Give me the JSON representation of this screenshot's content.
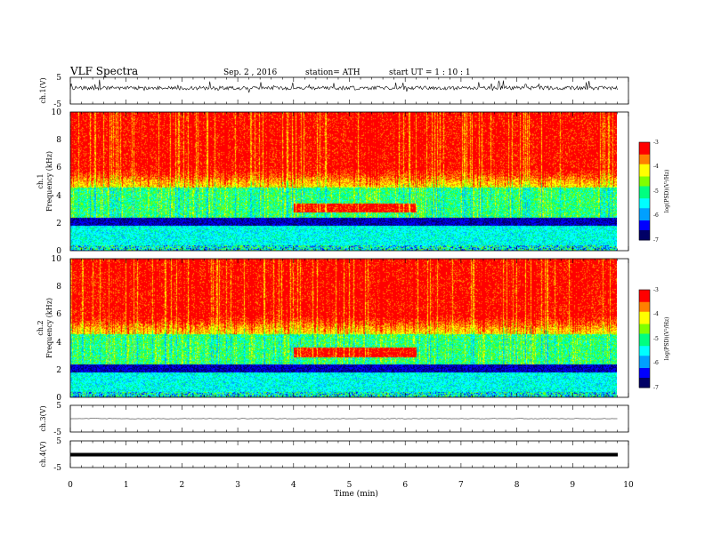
{
  "header": {
    "title": "VLF  Spectra",
    "date": "Sep. 2  , 2016",
    "station": "station= ATH",
    "start": "start  UT  =   1  : 10 : 1"
  },
  "chart_data": [
    {
      "type": "line",
      "panel": "ch1-waveform",
      "ylabel": "ch.1(V)",
      "ylim": [
        -5,
        5
      ],
      "yticks": [
        "5",
        "-5"
      ],
      "xlim": [
        0,
        10
      ],
      "note": "broadband noise waveform, roughly 0 to 2 V with spikes"
    },
    {
      "type": "heatmap",
      "panel": "ch1-spectrogram",
      "ylabel_lines": [
        "ch.1",
        "Frequency  (kHz)"
      ],
      "ylim": [
        0,
        10
      ],
      "yticks": [
        "0",
        "2",
        "4",
        "6",
        "8",
        "10"
      ],
      "xlim": [
        0,
        9.8
      ],
      "colorbar": {
        "label": "log(PSD)(V²/Hz)",
        "range": [
          -7,
          -3
        ],
        "ticks": [
          "-3",
          "-4",
          "-5",
          "-6",
          "-7"
        ]
      },
      "features": [
        {
          "label": "low-power band",
          "freq_khz": [
            1.8,
            2.4
          ],
          "level": -6.5
        },
        {
          "label": "enhanced emission",
          "time_min": [
            4.0,
            6.2
          ],
          "freq_khz": [
            2.8,
            3.4
          ],
          "level": -3.5
        }
      ]
    },
    {
      "type": "heatmap",
      "panel": "ch2-spectrogram",
      "ylabel_lines": [
        "ch.2",
        "Frequency  (kHz)"
      ],
      "ylim": [
        0,
        10
      ],
      "yticks": [
        "0",
        "2",
        "4",
        "6",
        "8",
        "10"
      ],
      "xlim": [
        0,
        9.8
      ],
      "colorbar": {
        "label": "log(PSD)(V²/Hz)",
        "range": [
          -7,
          -3
        ],
        "ticks": [
          "-3",
          "-4",
          "-5",
          "-6",
          "-7"
        ]
      },
      "features": [
        {
          "label": "low-power band",
          "freq_khz": [
            1.8,
            2.4
          ],
          "level": -6.5
        },
        {
          "label": "enhanced emission",
          "time_min": [
            4.0,
            6.2
          ],
          "freq_khz": [
            2.9,
            3.6
          ],
          "level": -3.5
        }
      ]
    },
    {
      "type": "line",
      "panel": "ch3-waveform",
      "ylabel": "ch.3(V)",
      "ylim": [
        -5,
        5
      ],
      "yticks": [
        "5",
        "-5"
      ],
      "xlim": [
        0,
        10
      ],
      "note": "flat near 0 V"
    },
    {
      "type": "line",
      "panel": "ch4-waveform",
      "ylabel": "ch.4(V)",
      "ylim": [
        -5,
        5
      ],
      "yticks": [
        "5",
        "-5"
      ],
      "xlim": [
        0,
        10
      ],
      "xlabel": "Time  (min)",
      "xticks": [
        "0",
        "1",
        "2",
        "3",
        "4",
        "5",
        "6",
        "7",
        "8",
        "9",
        "10"
      ],
      "note": "thick trace near 0 V"
    }
  ],
  "colors": {
    "scale": [
      "#000066",
      "#0000ff",
      "#00a0ff",
      "#00ffff",
      "#00ff80",
      "#80ff00",
      "#ffff00",
      "#ff8000",
      "#ff0000",
      "#ffffff"
    ]
  }
}
